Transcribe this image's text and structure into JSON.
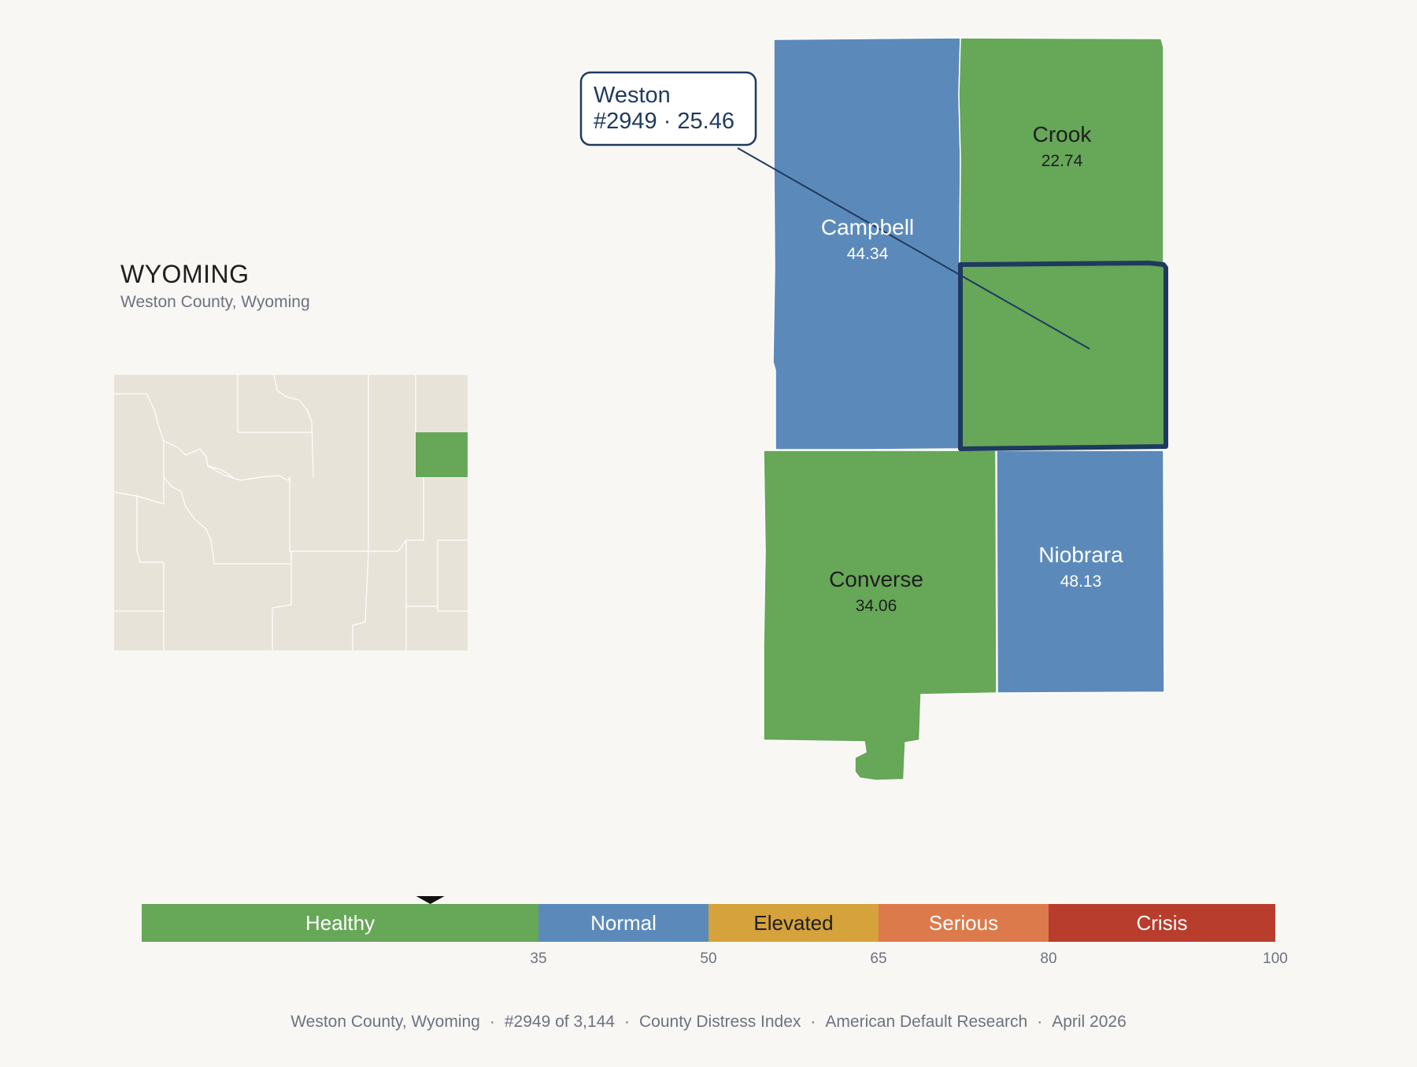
{
  "state": {
    "title": "WYOMING",
    "subtitle": "Weston County, Wyoming"
  },
  "callout": {
    "name": "Weston",
    "rank_score": "#2949 · 25.46"
  },
  "counties": [
    {
      "name": "Campbell",
      "value": "44.34",
      "category": "Normal"
    },
    {
      "name": "Crook",
      "value": "22.74",
      "category": "Healthy"
    },
    {
      "name": "Weston",
      "value": "25.46",
      "category": "Healthy",
      "selected": true
    },
    {
      "name": "Converse",
      "value": "34.06",
      "category": "Healthy"
    },
    {
      "name": "Niobrara",
      "value": "48.13",
      "category": "Normal"
    }
  ],
  "legend": {
    "min": 0,
    "max": 100,
    "marker_value": 25.46,
    "bands": [
      {
        "label": "Healthy",
        "from": 0,
        "to": 35,
        "color": "#66a758",
        "text_color": "#ffffff"
      },
      {
        "label": "Normal",
        "from": 35,
        "to": 50,
        "color": "#5b8aba",
        "text_color": "#ffffff"
      },
      {
        "label": "Elevated",
        "from": 50,
        "to": 65,
        "color": "#d5a23b",
        "text_color": "#1e1e1e"
      },
      {
        "label": "Serious",
        "from": 65,
        "to": 80,
        "color": "#dd7a4b",
        "text_color": "#ffffff"
      },
      {
        "label": "Crisis",
        "from": 80,
        "to": 100,
        "color": "#b83d2d",
        "text_color": "#ffffff"
      }
    ],
    "ticks": [
      "35",
      "50",
      "65",
      "80",
      "100"
    ]
  },
  "footer": {
    "county": "Weston County, Wyoming",
    "rank": "#2949 of 3,144",
    "index": "County Distress Index",
    "org": "American Default Research",
    "date": "April 2026"
  },
  "colors": {
    "healthy": "#66a758",
    "normal": "#5b8aba",
    "highlight_border": "#1f3a5f",
    "inset_fill": "#e8e3d9"
  }
}
